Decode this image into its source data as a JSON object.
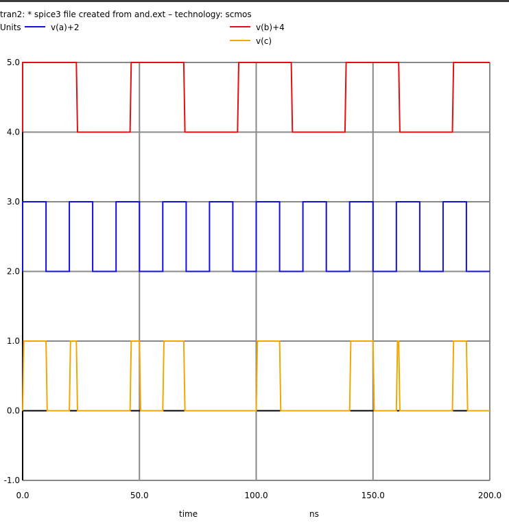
{
  "window": {
    "title": "tran2: * spice3 file created from and.ext – technology: scmos"
  },
  "chart_data": {
    "type": "line",
    "title": "tran2: * spice3 file created from and.ext – technology: scmos",
    "ylabel": "Units",
    "xlabel": "time",
    "xunit": "ns",
    "xlim": [
      0,
      200
    ],
    "ylim": [
      -1,
      5
    ],
    "xticks": [
      0,
      50,
      100,
      150,
      200
    ],
    "xtick_labels": [
      "0.0",
      "50.0",
      "100.0",
      "150.0",
      "200.0"
    ],
    "yticks": [
      5,
      4,
      3,
      2,
      1,
      0,
      -1
    ],
    "ytick_labels": [
      "5.0",
      "4.0",
      "3.0",
      "2.0",
      "1.0",
      "0.0",
      "-1.0"
    ],
    "grid": true,
    "legend_position": "top",
    "series": [
      {
        "name": "v(a)+2",
        "color": "#1010d8",
        "x": [
          0,
          0,
          10,
          10,
          20,
          20,
          30,
          30,
          40,
          40,
          50,
          50,
          60,
          60,
          70,
          70,
          80,
          80,
          90,
          90,
          100,
          100,
          110,
          110,
          120,
          120,
          130,
          130,
          140,
          140,
          150,
          150,
          160,
          160,
          170,
          170,
          180,
          180,
          190,
          190,
          200
        ],
        "y": [
          2,
          3,
          3,
          2,
          2,
          3,
          3,
          2,
          2,
          3,
          3,
          2,
          2,
          3,
          3,
          2,
          2,
          3,
          3,
          2,
          2,
          3,
          3,
          2,
          2,
          3,
          3,
          2,
          2,
          3,
          3,
          2,
          2,
          3,
          3,
          2,
          2,
          3,
          3,
          2,
          2
        ]
      },
      {
        "name": "v(b)+4",
        "color": "#e01010",
        "x": [
          0,
          0,
          23,
          23.5,
          46,
          46.5,
          69,
          69.5,
          92,
          92.5,
          115,
          115.5,
          138,
          138.5,
          161,
          161.5,
          184,
          184.5,
          200
        ],
        "y": [
          4,
          5,
          5,
          4,
          4,
          5,
          5,
          4,
          4,
          5,
          5,
          4,
          4,
          5,
          5,
          4,
          4,
          5,
          5
        ]
      },
      {
        "name": "v(c)",
        "color": "#f0a800",
        "x": [
          0,
          0.5,
          10,
          10.5,
          20,
          20.5,
          23,
          23.5,
          46,
          46.5,
          50,
          50.5,
          60,
          60.5,
          69,
          69.5,
          100,
          100.5,
          110,
          110.5,
          140,
          140.5,
          150,
          150.5,
          160,
          160.5,
          161,
          161.5,
          184,
          184.5,
          190,
          190.5,
          200
        ],
        "y": [
          0,
          1,
          1,
          0,
          0,
          1,
          1,
          0,
          0,
          1,
          1,
          0,
          0,
          1,
          1,
          0,
          0,
          1,
          1,
          0,
          0,
          1,
          1,
          0,
          0,
          1,
          1,
          0,
          0,
          1,
          1,
          0,
          0
        ]
      }
    ]
  },
  "legend": {
    "items": [
      {
        "label": "v(a)+2",
        "color": "#1010d8"
      },
      {
        "label": "v(b)+4",
        "color": "#e01010"
      },
      {
        "label": "v(c)",
        "color": "#f0a800"
      }
    ]
  }
}
